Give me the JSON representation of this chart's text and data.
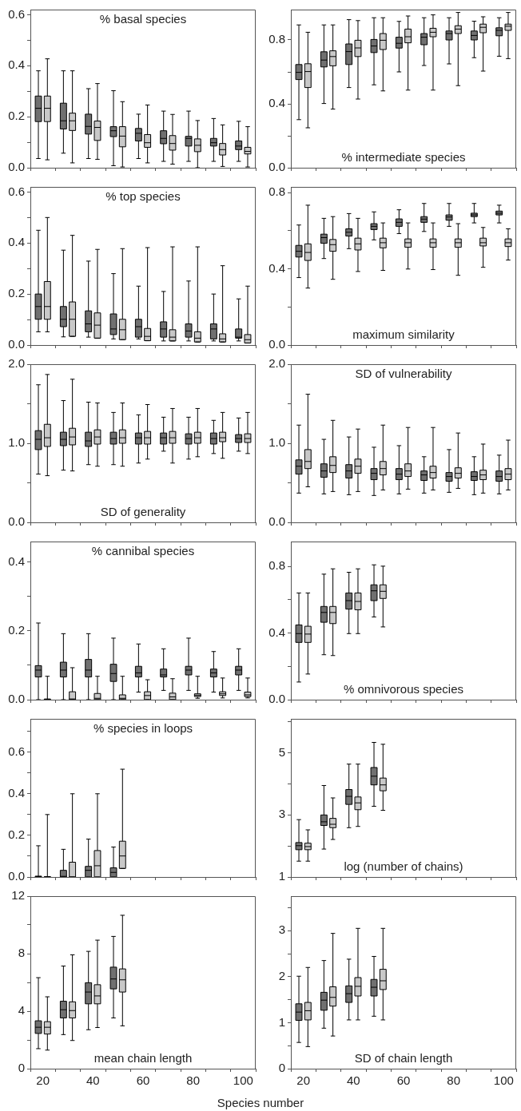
{
  "chart_data": [
    {
      "type": "box",
      "title": "% basal species",
      "categories": [
        "20",
        null,
        "40",
        null,
        "60",
        null,
        "80",
        null,
        "100"
      ],
      "tick_labels": "y",
      "ylim": [
        0,
        0.62
      ],
      "yticks": [
        {
          "value": 0,
          "label": "0.0"
        },
        {
          "value": 0.1,
          "label": null
        },
        {
          "value": 0.2,
          "label": "0.2"
        },
        {
          "value": 0.3,
          "label": null
        },
        {
          "value": 0.4,
          "label": "0.4"
        },
        {
          "value": 0.5,
          "label": null
        },
        {
          "value": 0.6,
          "label": "0.6"
        }
      ],
      "series": [
        {
          "color": "#707070",
          "boxes": [
            {
              "low": 0.036,
              "q1": 0.181,
              "median": 0.233,
              "q3": 0.281,
              "high": 0.38
            },
            {
              "low": 0.057,
              "q1": 0.152,
              "median": 0.184,
              "q3": 0.253,
              "high": 0.38
            },
            {
              "low": 0.036,
              "q1": 0.132,
              "median": 0.162,
              "q3": 0.21,
              "high": 0.31
            },
            {
              "low": 0.008,
              "q1": 0.122,
              "median": 0.145,
              "q3": 0.161,
              "high": 0.302
            },
            {
              "low": 0.036,
              "q1": 0.105,
              "median": 0.135,
              "q3": 0.154,
              "high": 0.21
            },
            {
              "low": 0.025,
              "q1": 0.094,
              "median": 0.115,
              "q3": 0.145,
              "high": 0.222
            },
            {
              "low": 0.025,
              "q1": 0.085,
              "median": 0.115,
              "q3": 0.123,
              "high": 0.222
            },
            {
              "low": 0.025,
              "q1": 0.085,
              "median": 0.098,
              "q3": 0.115,
              "high": 0.193
            },
            {
              "low": 0.025,
              "q1": 0.071,
              "median": 0.085,
              "q3": 0.105,
              "high": 0.182
            }
          ]
        },
        {
          "color": "#c8c8c8",
          "boxes": [
            {
              "low": 0.031,
              "q1": 0.181,
              "median": 0.233,
              "q3": 0.281,
              "high": 0.427
            },
            {
              "low": 0.019,
              "q1": 0.146,
              "median": 0.184,
              "q3": 0.214,
              "high": 0.38
            },
            {
              "low": 0.033,
              "q1": 0.107,
              "median": 0.158,
              "q3": 0.183,
              "high": 0.33
            },
            {
              "low": 0.003,
              "q1": 0.082,
              "median": 0.124,
              "q3": 0.161,
              "high": 0.259
            },
            {
              "low": 0.019,
              "q1": 0.08,
              "median": 0.098,
              "q3": 0.13,
              "high": 0.246
            },
            {
              "low": 0.014,
              "q1": 0.069,
              "median": 0.095,
              "q3": 0.126,
              "high": 0.209
            },
            {
              "low": 0,
              "q1": 0.063,
              "median": 0.088,
              "q3": 0.113,
              "high": 0.185
            },
            {
              "low": 0.005,
              "q1": 0.05,
              "median": 0.071,
              "q3": 0.095,
              "high": 0.168
            },
            {
              "low": 0.003,
              "q1": 0.054,
              "median": 0.064,
              "q3": 0.08,
              "high": 0.161
            }
          ]
        }
      ]
    },
    {
      "type": "box",
      "title": "% intermediate species",
      "categories": [
        "20",
        null,
        "40",
        null,
        "60",
        null,
        "80",
        null,
        "100"
      ],
      "tick_labels": "y",
      "ylim": [
        0,
        0.99
      ],
      "yticks": [
        {
          "value": 0,
          "label": "0.0"
        },
        {
          "value": 0.2,
          "label": null
        },
        {
          "value": 0.4,
          "label": "0.4"
        },
        {
          "value": 0.6,
          "label": null
        },
        {
          "value": 0.8,
          "label": "0.8"
        }
      ],
      "series": [
        {
          "color": "#707070",
          "boxes": [
            {
              "low": 0.301,
              "q1": 0.552,
              "median": 0.597,
              "q3": 0.646,
              "high": 0.894
            },
            {
              "low": 0.402,
              "q1": 0.631,
              "median": 0.674,
              "q3": 0.726,
              "high": 0.894
            },
            {
              "low": 0.502,
              "q1": 0.646,
              "median": 0.727,
              "q3": 0.775,
              "high": 0.927
            },
            {
              "low": 0.519,
              "q1": 0.721,
              "median": 0.762,
              "q3": 0.803,
              "high": 0.939
            },
            {
              "low": 0.6,
              "q1": 0.749,
              "median": 0.779,
              "q3": 0.817,
              "high": 0.916
            },
            {
              "low": 0.64,
              "q1": 0.77,
              "median": 0.817,
              "q3": 0.84,
              "high": 0.939
            },
            {
              "low": 0.65,
              "q1": 0.8,
              "median": 0.84,
              "q3": 0.856,
              "high": 0.939
            },
            {
              "low": 0.689,
              "q1": 0.8,
              "median": 0.828,
              "q3": 0.856,
              "high": 0.917
            },
            {
              "low": 0.698,
              "q1": 0.826,
              "median": 0.86,
              "q3": 0.876,
              "high": 0.939
            }
          ]
        },
        {
          "color": "#c8c8c8",
          "boxes": [
            {
              "low": 0.25,
              "q1": 0.502,
              "median": 0.602,
              "q3": 0.651,
              "high": 0.848
            },
            {
              "low": 0.367,
              "q1": 0.638,
              "median": 0.696,
              "q3": 0.732,
              "high": 0.894
            },
            {
              "low": 0.43,
              "q1": 0.696,
              "median": 0.75,
              "q3": 0.798,
              "high": 0.921
            },
            {
              "low": 0.481,
              "q1": 0.74,
              "median": 0.798,
              "q3": 0.84,
              "high": 0.939
            },
            {
              "low": 0.486,
              "q1": 0.782,
              "median": 0.82,
              "q3": 0.868,
              "high": 0.95
            },
            {
              "low": 0.486,
              "q1": 0.82,
              "median": 0.848,
              "q3": 0.873,
              "high": 0.957
            },
            {
              "low": 0.514,
              "q1": 0.84,
              "median": 0.868,
              "q3": 0.889,
              "high": 0.972
            },
            {
              "low": 0.605,
              "q1": 0.845,
              "median": 0.879,
              "q3": 0.899,
              "high": 0.945
            },
            {
              "low": 0.683,
              "q1": 0.86,
              "median": 0.886,
              "q3": 0.899,
              "high": 0.972
            }
          ]
        }
      ]
    },
    {
      "type": "box",
      "title": "% top species",
      "categories": [
        "20",
        null,
        "40",
        null,
        "60",
        null,
        "80",
        null,
        "100"
      ],
      "tick_labels": "y",
      "ylim": [
        0,
        0.62
      ],
      "yticks": [
        {
          "value": 0,
          "label": "0.0"
        },
        {
          "value": 0.1,
          "label": null
        },
        {
          "value": 0.2,
          "label": "0.2"
        },
        {
          "value": 0.3,
          "label": null
        },
        {
          "value": 0.4,
          "label": "0.4"
        },
        {
          "value": 0.5,
          "label": null
        },
        {
          "value": 0.6,
          "label": "0.6"
        }
      ],
      "series": [
        {
          "color": "#707070",
          "boxes": [
            {
              "low": 0.052,
              "q1": 0.101,
              "median": 0.151,
              "q3": 0.2,
              "high": 0.45
            },
            {
              "low": 0.032,
              "q1": 0.072,
              "median": 0.101,
              "q3": 0.151,
              "high": 0.372
            },
            {
              "low": 0.031,
              "q1": 0.052,
              "median": 0.083,
              "q3": 0.134,
              "high": 0.329
            },
            {
              "low": 0.024,
              "q1": 0.041,
              "median": 0.063,
              "q3": 0.122,
              "high": 0.28
            },
            {
              "low": 0.024,
              "q1": 0.031,
              "median": 0.072,
              "q3": 0.101,
              "high": 0.231
            },
            {
              "low": 0.016,
              "q1": 0.031,
              "median": 0.063,
              "q3": 0.091,
              "high": 0.21
            },
            {
              "low": 0.016,
              "q1": 0.031,
              "median": 0.055,
              "q3": 0.083,
              "high": 0.251
            },
            {
              "low": 0.016,
              "q1": 0.024,
              "median": 0.063,
              "q3": 0.083,
              "high": 0.2
            },
            {
              "low": 0.016,
              "q1": 0.027,
              "median": 0.031,
              "q3": 0.063,
              "high": 0.181
            }
          ]
        },
        {
          "color": "#c8c8c8",
          "boxes": [
            {
              "low": 0.052,
              "q1": 0.101,
              "median": 0.151,
              "q3": 0.249,
              "high": 0.5
            },
            {
              "low": 0.034,
              "q1": 0.034,
              "median": 0.101,
              "q3": 0.169,
              "high": 0.43
            },
            {
              "low": 0.027,
              "q1": 0.027,
              "median": 0.078,
              "q3": 0.126,
              "high": 0.375
            },
            {
              "low": 0.021,
              "q1": 0.021,
              "median": 0.06,
              "q3": 0.101,
              "high": 0.378
            },
            {
              "low": 0.017,
              "q1": 0.017,
              "median": 0.034,
              "q3": 0.065,
              "high": 0.382
            },
            {
              "low": 0.016,
              "q1": 0.016,
              "median": 0.031,
              "q3": 0.06,
              "high": 0.385
            },
            {
              "low": 0.012,
              "q1": 0.012,
              "median": 0.027,
              "q3": 0.052,
              "high": 0.385
            },
            {
              "low": 0.012,
              "q1": 0.012,
              "median": 0.024,
              "q3": 0.044,
              "high": 0.311
            },
            {
              "low": 0.008,
              "q1": 0.008,
              "median": 0.021,
              "q3": 0.041,
              "high": 0.231
            }
          ]
        }
      ]
    },
    {
      "type": "box",
      "title": "maximum similarity",
      "categories": [
        "20",
        null,
        "40",
        null,
        "60",
        null,
        "80",
        null,
        "100"
      ],
      "tick_labels": "y",
      "ylim": [
        0,
        0.83
      ],
      "yticks": [
        {
          "value": 0,
          "label": "0.0"
        },
        {
          "value": 0.2,
          "label": null
        },
        {
          "value": 0.4,
          "label": "0.4"
        },
        {
          "value": 0.6,
          "label": null
        },
        {
          "value": 0.8,
          "label": "0.8"
        }
      ],
      "series": [
        {
          "color": "#707070",
          "boxes": [
            {
              "low": 0.354,
              "q1": 0.462,
              "median": 0.492,
              "q3": 0.523,
              "high": 0.63
            },
            {
              "low": 0.454,
              "q1": 0.534,
              "median": 0.564,
              "q3": 0.582,
              "high": 0.665
            },
            {
              "low": 0.506,
              "q1": 0.572,
              "median": 0.592,
              "q3": 0.61,
              "high": 0.69
            },
            {
              "low": 0.552,
              "q1": 0.606,
              "median": 0.623,
              "q3": 0.637,
              "high": 0.699
            },
            {
              "low": 0.585,
              "q1": 0.623,
              "median": 0.644,
              "q3": 0.662,
              "high": 0.71
            },
            {
              "low": 0.596,
              "q1": 0.644,
              "median": 0.661,
              "q3": 0.674,
              "high": 0.743
            },
            {
              "low": 0.623,
              "q1": 0.655,
              "median": 0.672,
              "q3": 0.683,
              "high": 0.743
            },
            {
              "low": 0.641,
              "q1": 0.674,
              "median": 0.683,
              "q3": 0.692,
              "high": 0.743
            },
            {
              "low": 0.641,
              "q1": 0.683,
              "median": 0.692,
              "q3": 0.703,
              "high": 0.734
            }
          ]
        },
        {
          "color": "#c8c8c8",
          "boxes": [
            {
              "low": 0.299,
              "q1": 0.444,
              "median": 0.486,
              "q3": 0.531,
              "high": 0.734
            },
            {
              "low": 0.345,
              "q1": 0.492,
              "median": 0.527,
              "q3": 0.554,
              "high": 0.674
            },
            {
              "low": 0.386,
              "q1": 0.499,
              "median": 0.531,
              "q3": 0.561,
              "high": 0.665
            },
            {
              "low": 0.392,
              "q1": 0.51,
              "median": 0.537,
              "q3": 0.561,
              "high": 0.641
            },
            {
              "low": 0.399,
              "q1": 0.513,
              "median": 0.537,
              "q3": 0.557,
              "high": 0.641
            },
            {
              "low": 0.396,
              "q1": 0.513,
              "median": 0.537,
              "q3": 0.557,
              "high": 0.641
            },
            {
              "low": 0.366,
              "q1": 0.513,
              "median": 0.537,
              "q3": 0.557,
              "high": 0.637
            },
            {
              "low": 0.408,
              "q1": 0.52,
              "median": 0.537,
              "q3": 0.561,
              "high": 0.617
            },
            {
              "low": 0.446,
              "q1": 0.517,
              "median": 0.537,
              "q3": 0.557,
              "high": 0.61
            }
          ]
        }
      ]
    },
    {
      "type": "box",
      "title": "SD of generality",
      "categories": [
        "20",
        null,
        "40",
        null,
        "60",
        null,
        "80",
        null,
        "100"
      ],
      "tick_labels": "y",
      "ylim": [
        0,
        2
      ],
      "yticks": [
        {
          "value": 0,
          "label": "0.0"
        },
        {
          "value": 0.5,
          "label": null
        },
        {
          "value": 1,
          "label": "1.0"
        },
        {
          "value": 1.5,
          "label": null
        },
        {
          "value": 2,
          "label": "2.0"
        }
      ],
      "series": [
        {
          "color": "#707070",
          "boxes": [
            {
              "low": 0.61,
              "q1": 0.92,
              "median": 1.05,
              "q3": 1.16,
              "high": 1.74
            },
            {
              "low": 0.66,
              "q1": 0.97,
              "median": 1.05,
              "q3": 1.14,
              "high": 1.54
            },
            {
              "low": 0.73,
              "q1": 0.96,
              "median": 1.03,
              "q3": 1.14,
              "high": 1.52
            },
            {
              "low": 0.73,
              "q1": 0.99,
              "median": 1.06,
              "q3": 1.14,
              "high": 1.39
            },
            {
              "low": 0.75,
              "q1": 0.99,
              "median": 1.07,
              "q3": 1.13,
              "high": 1.36
            },
            {
              "low": 0.9,
              "q1": 0.99,
              "median": 1.07,
              "q3": 1.13,
              "high": 1.33
            },
            {
              "low": 0.8,
              "q1": 0.99,
              "median": 1.06,
              "q3": 1.12,
              "high": 1.33
            },
            {
              "low": 0.87,
              "q1": 0.99,
              "median": 1.06,
              "q3": 1.13,
              "high": 1.29
            },
            {
              "low": 0.9,
              "q1": 1.01,
              "median": 1.06,
              "q3": 1.11,
              "high": 1.32
            }
          ]
        },
        {
          "color": "#c8c8c8",
          "boxes": [
            {
              "low": 0.59,
              "q1": 0.96,
              "median": 1.07,
              "q3": 1.24,
              "high": 1.87
            },
            {
              "low": 0.65,
              "q1": 0.98,
              "median": 1.08,
              "q3": 1.19,
              "high": 1.81
            },
            {
              "low": 0.71,
              "q1": 0.99,
              "median": 1.08,
              "q3": 1.17,
              "high": 1.51
            },
            {
              "low": 0.71,
              "q1": 1.0,
              "median": 1.07,
              "q3": 1.17,
              "high": 1.51
            },
            {
              "low": 0.8,
              "q1": 0.99,
              "median": 1.07,
              "q3": 1.15,
              "high": 1.49
            },
            {
              "low": 0.75,
              "q1": 1.0,
              "median": 1.07,
              "q3": 1.15,
              "high": 1.44
            },
            {
              "low": 0.83,
              "q1": 1.0,
              "median": 1.07,
              "q3": 1.14,
              "high": 1.44
            },
            {
              "low": 0.81,
              "q1": 1.02,
              "median": 1.07,
              "q3": 1.14,
              "high": 1.39
            },
            {
              "low": 0.87,
              "q1": 1.01,
              "median": 1.06,
              "q3": 1.12,
              "high": 1.39
            }
          ]
        }
      ]
    },
    {
      "type": "box",
      "title": "SD of vulnerability",
      "categories": [
        "20",
        null,
        "40",
        null,
        "60",
        null,
        "80",
        null,
        "100"
      ],
      "tick_labels": "y",
      "ylim": [
        0,
        2
      ],
      "yticks": [
        {
          "value": 0,
          "label": "0.0"
        },
        {
          "value": 0.5,
          "label": null
        },
        {
          "value": 1,
          "label": "1.0"
        },
        {
          "value": 1.5,
          "label": null
        },
        {
          "value": 2,
          "label": "2.0"
        }
      ],
      "series": [
        {
          "color": "#707070",
          "boxes": [
            {
              "low": 0.37,
              "q1": 0.61,
              "median": 0.71,
              "q3": 0.79,
              "high": 1.23
            },
            {
              "low": 0.36,
              "q1": 0.57,
              "median": 0.65,
              "q3": 0.74,
              "high": 1.05
            },
            {
              "low": 0.35,
              "q1": 0.56,
              "median": 0.65,
              "q3": 0.73,
              "high": 1.08
            },
            {
              "low": 0.34,
              "q1": 0.54,
              "median": 0.62,
              "q3": 0.68,
              "high": 0.95
            },
            {
              "low": 0.36,
              "q1": 0.54,
              "median": 0.61,
              "q3": 0.68,
              "high": 0.97
            },
            {
              "low": 0.37,
              "q1": 0.53,
              "median": 0.6,
              "q3": 0.65,
              "high": 0.83
            },
            {
              "low": 0.38,
              "q1": 0.52,
              "median": 0.58,
              "q3": 0.63,
              "high": 0.92
            },
            {
              "low": 0.35,
              "q1": 0.53,
              "median": 0.58,
              "q3": 0.64,
              "high": 0.83
            },
            {
              "low": 0.36,
              "q1": 0.52,
              "median": 0.58,
              "q3": 0.65,
              "high": 0.85
            }
          ]
        },
        {
          "color": "#c8c8c8",
          "boxes": [
            {
              "low": 0.45,
              "q1": 0.68,
              "median": 0.77,
              "q3": 0.92,
              "high": 1.62
            },
            {
              "low": 0.39,
              "q1": 0.63,
              "median": 0.72,
              "q3": 0.83,
              "high": 1.29
            },
            {
              "low": 0.39,
              "q1": 0.62,
              "median": 0.71,
              "q3": 0.8,
              "high": 1.18
            },
            {
              "low": 0.41,
              "q1": 0.6,
              "median": 0.68,
              "q3": 0.77,
              "high": 1.23
            },
            {
              "low": 0.42,
              "q1": 0.58,
              "median": 0.65,
              "q3": 0.74,
              "high": 1.2
            },
            {
              "low": 0.41,
              "q1": 0.56,
              "median": 0.63,
              "q3": 0.71,
              "high": 1.2
            },
            {
              "low": 0.43,
              "q1": 0.56,
              "median": 0.62,
              "q3": 0.69,
              "high": 1.13
            },
            {
              "low": 0.37,
              "q1": 0.54,
              "median": 0.6,
              "q3": 0.66,
              "high": 0.99
            },
            {
              "low": 0.41,
              "q1": 0.54,
              "median": 0.61,
              "q3": 0.68,
              "high": 1.04
            }
          ]
        }
      ]
    },
    {
      "type": "box",
      "title": "% cannibal species",
      "categories": [
        "20",
        null,
        "40",
        null,
        "60",
        null,
        "80",
        null,
        "100"
      ],
      "tick_labels": "y",
      "ylim": [
        0,
        0.46
      ],
      "yticks": [
        {
          "value": 0,
          "label": "0.0"
        },
        {
          "value": 0.1,
          "label": null
        },
        {
          "value": 0.2,
          "label": "0.2"
        },
        {
          "value": 0.3,
          "label": null
        },
        {
          "value": 0.4,
          "label": "0.4"
        }
      ],
      "series": [
        {
          "color": "#707070",
          "boxes": [
            {
              "low": 0,
              "q1": 0.066,
              "median": 0.086,
              "q3": 0.099,
              "high": 0.223
            },
            {
              "low": 0,
              "q1": 0.066,
              "median": 0.086,
              "q3": 0.109,
              "high": 0.192
            },
            {
              "low": 0,
              "q1": 0.066,
              "median": 0.086,
              "q3": 0.117,
              "high": 0.192
            },
            {
              "low": 0,
              "q1": 0.053,
              "median": 0.076,
              "q3": 0.103,
              "high": 0.179
            },
            {
              "low": 0.022,
              "q1": 0.066,
              "median": 0.078,
              "q3": 0.097,
              "high": 0.162
            },
            {
              "low": 0.027,
              "q1": 0.066,
              "median": 0.072,
              "q3": 0.089,
              "high": 0.148
            },
            {
              "low": 0.027,
              "q1": 0.072,
              "median": 0.086,
              "q3": 0.097,
              "high": 0.179
            },
            {
              "low": 0.022,
              "q1": 0.066,
              "median": 0.078,
              "q3": 0.089,
              "high": 0.14
            },
            {
              "low": 0.027,
              "q1": 0.072,
              "median": 0.086,
              "q3": 0.097,
              "high": 0.148
            }
          ]
        },
        {
          "color": "#c8c8c8",
          "boxes": [
            {
              "low": 0,
              "q1": 0,
              "median": 0,
              "q3": 0.002,
              "high": 0.068
            },
            {
              "low": 0,
              "q1": 0,
              "median": 0.002,
              "q3": 0.023,
              "high": 0.093
            },
            {
              "low": 0,
              "q1": 0,
              "median": 0.004,
              "q3": 0.018,
              "high": 0.068
            },
            {
              "low": 0,
              "q1": 0,
              "median": 0.004,
              "q3": 0.014,
              "high": 0.068
            },
            {
              "low": 0,
              "q1": 0,
              "median": 0.012,
              "q3": 0.023,
              "high": 0.058
            },
            {
              "low": 0,
              "q1": 0,
              "median": 0.008,
              "q3": 0.019,
              "high": 0.061
            },
            {
              "low": 0.004,
              "q1": 0.009,
              "median": 0.013,
              "q3": 0.017,
              "high": 0.068
            },
            {
              "low": 0.005,
              "q1": 0.012,
              "median": 0.017,
              "q3": 0.023,
              "high": 0.063
            },
            {
              "low": 0.005,
              "q1": 0.009,
              "median": 0.014,
              "q3": 0.022,
              "high": 0.063
            }
          ]
        }
      ]
    },
    {
      "type": "box",
      "title": "% omnivorous species",
      "categories": [
        "20",
        null,
        "40",
        null,
        "60",
        null,
        "80",
        null,
        "100"
      ],
      "tick_labels": "y",
      "ylim": [
        0,
        0.95
      ],
      "yticks": [
        {
          "value": 0,
          "label": "0.0"
        },
        {
          "value": 0.2,
          "label": null
        },
        {
          "value": 0.4,
          "label": "0.4"
        },
        {
          "value": 0.6,
          "label": null
        },
        {
          "value": 0.8,
          "label": "0.8"
        }
      ],
      "series": [
        {
          "color": "#707070",
          "boxes": [
            {
              "low": 0.106,
              "q1": 0.344,
              "median": 0.397,
              "q3": 0.449,
              "high": 0.641
            },
            {
              "low": 0.27,
              "q1": 0.465,
              "median": 0.524,
              "q3": 0.56,
              "high": 0.754
            },
            {
              "low": 0.397,
              "q1": 0.544,
              "median": 0.595,
              "q3": 0.641,
              "high": 0.765
            },
            {
              "low": 0.497,
              "q1": 0.595,
              "median": 0.654,
              "q3": 0.69,
              "high": 0.81
            },
            null,
            null,
            null,
            null,
            null
          ]
        },
        {
          "color": "#c8c8c8",
          "boxes": [
            {
              "low": 0.154,
              "q1": 0.344,
              "median": 0.394,
              "q3": 0.441,
              "high": 0.641
            },
            {
              "low": 0.265,
              "q1": 0.457,
              "median": 0.524,
              "q3": 0.56,
              "high": 0.786
            },
            {
              "low": 0.397,
              "q1": 0.54,
              "median": 0.59,
              "q3": 0.641,
              "high": 0.786
            },
            {
              "low": 0.437,
              "q1": 0.608,
              "median": 0.651,
              "q3": 0.69,
              "high": 0.802
            },
            null,
            null,
            null,
            null,
            null
          ]
        }
      ]
    },
    {
      "type": "box",
      "title": "% species in loops",
      "categories": [
        "20",
        null,
        "40",
        null,
        "60",
        null,
        "80",
        null,
        "100"
      ],
      "tick_labels": "y",
      "ylim": [
        0,
        0.76
      ],
      "yticks": [
        {
          "value": 0,
          "label": "0.0"
        },
        {
          "value": 0.1,
          "label": null
        },
        {
          "value": 0.2,
          "label": "0.2"
        },
        {
          "value": 0.3,
          "label": null
        },
        {
          "value": 0.4,
          "label": "0.4"
        },
        {
          "value": 0.5,
          "label": null
        },
        {
          "value": 0.6,
          "label": "0.6"
        },
        {
          "value": 0.7,
          "label": null
        }
      ],
      "series": [
        {
          "color": "#707070",
          "boxes": [
            {
              "low": 0,
              "q1": 0,
              "median": 0.002,
              "q3": 0.004,
              "high": 0.15
            },
            {
              "low": 0,
              "q1": 0,
              "median": 0.003,
              "q3": 0.032,
              "high": 0.133
            },
            {
              "low": 0,
              "q1": 0,
              "median": 0.032,
              "q3": 0.051,
              "high": 0.182
            },
            {
              "low": 0,
              "q1": 0,
              "median": 0.022,
              "q3": 0.044,
              "high": 0.144
            },
            null,
            null,
            null,
            null,
            null
          ]
        },
        {
          "color": "#c8c8c8",
          "boxes": [
            {
              "low": 0,
              "q1": 0,
              "median": 0,
              "q3": 0.002,
              "high": 0.3
            },
            {
              "low": 0,
              "q1": 0,
              "median": 0,
              "q3": 0.071,
              "high": 0.4
            },
            {
              "low": 0,
              "q1": 0,
              "median": 0.054,
              "q3": 0.127,
              "high": 0.4
            },
            {
              "low": 0.041,
              "q1": 0.041,
              "median": 0.101,
              "q3": 0.172,
              "high": 0.518
            },
            null,
            null,
            null,
            null,
            null
          ]
        }
      ]
    },
    {
      "type": "box",
      "title": "log (number of chains)",
      "categories": [
        "20",
        null,
        "40",
        null,
        "60",
        null,
        "80",
        null,
        "100"
      ],
      "tick_labels": "y",
      "ylim": [
        1,
        6.1
      ],
      "yticks": [
        1,
        {
          "value": 2,
          "label": null
        },
        3,
        {
          "value": 4,
          "label": null
        },
        5,
        {
          "value": 6,
          "label": null
        }
      ],
      "series": [
        {
          "color": "#707070",
          "boxes": [
            {
              "low": 1.51,
              "q1": 1.88,
              "median": 2.01,
              "q3": 2.11,
              "high": 2.85
            },
            {
              "low": 1.9,
              "q1": 2.66,
              "median": 2.78,
              "q3": 3.0,
              "high": 3.95
            },
            {
              "low": 2.59,
              "q1": 3.34,
              "median": 3.6,
              "q3": 3.82,
              "high": 4.64
            },
            {
              "low": 3.28,
              "q1": 3.97,
              "median": 4.25,
              "q3": 4.53,
              "high": 5.34
            },
            null,
            null,
            null,
            null,
            null
          ]
        },
        {
          "color": "#c8c8c8",
          "boxes": [
            {
              "low": 1.51,
              "q1": 1.88,
              "median": 1.98,
              "q3": 2.09,
              "high": 2.52
            },
            {
              "low": 2.21,
              "q1": 2.59,
              "median": 2.7,
              "q3": 2.89,
              "high": 3.55
            },
            {
              "low": 2.63,
              "q1": 3.17,
              "median": 3.39,
              "q3": 3.58,
              "high": 4.64
            },
            {
              "low": 3.15,
              "q1": 3.78,
              "median": 3.97,
              "q3": 4.19,
              "high": 5.28
            },
            null,
            null,
            null,
            null,
            null
          ]
        }
      ]
    },
    {
      "type": "box",
      "title": "mean chain length",
      "xlabel": "Species number",
      "categories": [
        "20",
        null,
        "40",
        null,
        "60",
        null,
        "80",
        null,
        "100"
      ],
      "ylim": [
        0,
        12
      ],
      "yticks": [
        0,
        {
          "value": 2,
          "label": null
        },
        4,
        {
          "value": 6,
          "label": null
        },
        8,
        {
          "value": 10,
          "label": null
        },
        12
      ],
      "series": [
        {
          "color": "#707070",
          "boxes": [
            {
              "low": 1.39,
              "q1": 2.45,
              "median": 2.88,
              "q3": 3.33,
              "high": 6.33
            },
            {
              "low": 2.37,
              "q1": 3.53,
              "median": 4.1,
              "q3": 4.69,
              "high": 7.14
            },
            {
              "low": 2.71,
              "q1": 4.51,
              "median": 5.33,
              "q3": 5.98,
              "high": 8.16
            },
            {
              "low": 3.53,
              "q1": 5.55,
              "median": 6.24,
              "q3": 7.06,
              "high": 9.2
            },
            null,
            null,
            null,
            null,
            null
          ]
        },
        {
          "color": "#c8c8c8",
          "boxes": [
            {
              "low": 1.29,
              "q1": 2.41,
              "median": 2.88,
              "q3": 3.27,
              "high": 5.0
            },
            {
              "low": 1.96,
              "q1": 3.53,
              "median": 4.04,
              "q3": 4.65,
              "high": 7.92
            },
            {
              "low": 2.86,
              "q1": 4.51,
              "median": 5.06,
              "q3": 5.84,
              "high": 8.94
            },
            {
              "low": 2.98,
              "q1": 5.33,
              "median": 6.18,
              "q3": 6.94,
              "high": 10.67
            },
            null,
            null,
            null,
            null,
            null
          ]
        }
      ]
    },
    {
      "type": "box",
      "title": "SD of chain length",
      "categories": [
        "20",
        null,
        "40",
        null,
        "60",
        null,
        "80",
        null,
        "100"
      ],
      "ylim": [
        0,
        3.75
      ],
      "yticks": [
        0,
        {
          "value": 0.5,
          "label": null
        },
        1,
        {
          "value": 1.5,
          "label": null
        },
        2,
        {
          "value": 2.5,
          "label": null
        },
        3,
        {
          "value": 3.5,
          "label": null
        }
      ],
      "series": [
        {
          "color": "#707070",
          "boxes": [
            {
              "low": 0.57,
              "q1": 1.05,
              "median": 1.23,
              "q3": 1.41,
              "high": 2.01
            },
            {
              "low": 0.88,
              "q1": 1.27,
              "median": 1.49,
              "q3": 1.66,
              "high": 2.35
            },
            {
              "low": 1.06,
              "q1": 1.44,
              "median": 1.63,
              "q3": 1.8,
              "high": 2.38
            },
            {
              "low": 1.14,
              "q1": 1.58,
              "median": 1.77,
              "q3": 1.94,
              "high": 2.44
            },
            null,
            null,
            null,
            null,
            null
          ]
        },
        {
          "color": "#c8c8c8",
          "boxes": [
            {
              "low": 0.48,
              "q1": 1.06,
              "median": 1.26,
              "q3": 1.44,
              "high": 2.2
            },
            {
              "low": 0.71,
              "q1": 1.36,
              "median": 1.55,
              "q3": 1.78,
              "high": 2.94
            },
            {
              "low": 1.06,
              "q1": 1.58,
              "median": 1.79,
              "q3": 1.98,
              "high": 3.05
            },
            {
              "low": 1.06,
              "q1": 1.72,
              "median": 1.91,
              "q3": 2.16,
              "high": 3.05
            },
            null,
            null,
            null,
            null,
            null
          ]
        }
      ]
    }
  ]
}
